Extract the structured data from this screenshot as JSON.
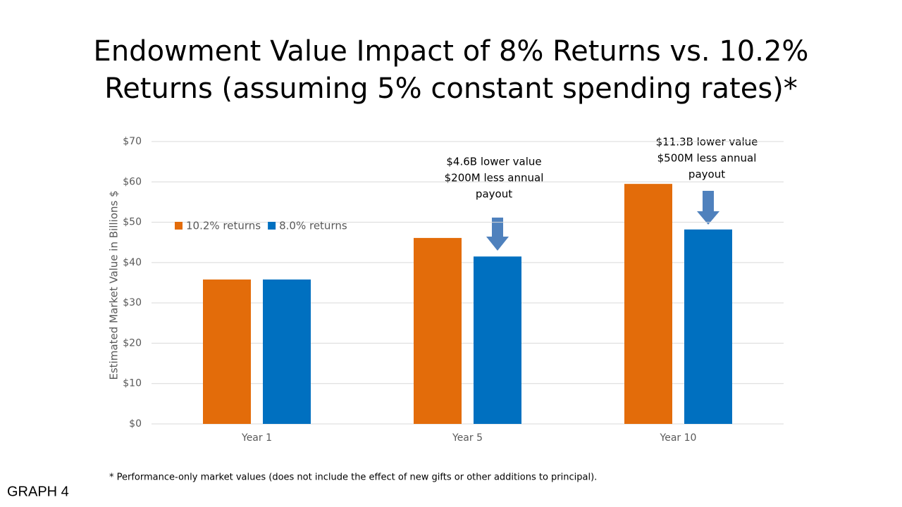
{
  "chart_data": {
    "type": "bar",
    "title_lines": [
      "Endowment Value Impact of 8% Returns vs. 10.2%",
      "Returns (assuming 5% constant spending rates)*"
    ],
    "y_label": "Estimated Market Value in Billions $",
    "categories": [
      "Year 1",
      "Year 5",
      "Year 10"
    ],
    "series": [
      {
        "name": "10.2% returns",
        "color": "#e36c0a",
        "values": [
          35.8,
          46.1,
          59.5
        ]
      },
      {
        "name": "8.0% returns",
        "color": "#0070c0",
        "values": [
          35.8,
          41.5,
          48.2
        ]
      }
    ],
    "ylim": [
      0,
      70
    ],
    "yticks": [
      {
        "value": 0,
        "label": "$0"
      },
      {
        "value": 10,
        "label": "$10"
      },
      {
        "value": 20,
        "label": "$20"
      },
      {
        "value": 30,
        "label": "$30"
      },
      {
        "value": 40,
        "label": "$40"
      },
      {
        "value": 50,
        "label": "$50"
      },
      {
        "value": 60,
        "label": "$60"
      },
      {
        "value": 70,
        "label": "$70"
      }
    ],
    "grid": true,
    "annotations": [
      [
        "$4.6B lower value",
        "$200M less annual",
        "payout"
      ],
      [
        "$11.3B lower value",
        "$500M less annual",
        "payout"
      ]
    ],
    "footnote": "* Performance-only market values (does not include the effect of new gifts or other additions to principal).",
    "graph_label": "GRAPH 4"
  }
}
